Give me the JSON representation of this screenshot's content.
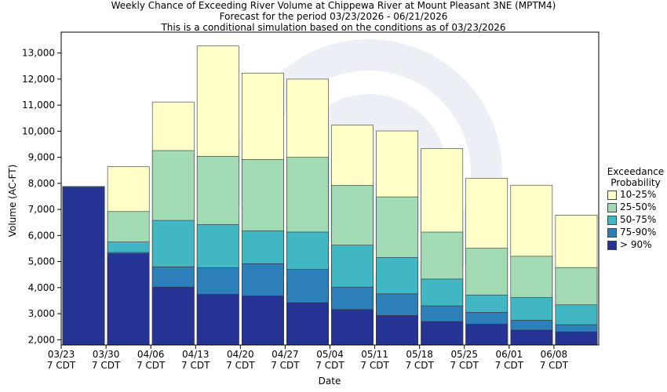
{
  "header": {
    "title": "Weekly Chance of Exceeding River Volume at Chippewa River at Mount Pleasant 3NE (MPTM4)",
    "subtitle1": "Forecast for the period 03/23/2026 - 06/21/2026",
    "subtitle2": "This is a conditional simulation based on the conditions as of 03/23/2026"
  },
  "legend": {
    "title_line1": "Exceedance",
    "title_line2": "Probability",
    "items": [
      {
        "label": "10-25%",
        "color": "#ffffc8"
      },
      {
        "label": "25-50%",
        "color": "#a2dab4"
      },
      {
        "label": "50-75%",
        "color": "#41b7c4"
      },
      {
        "label": "75-90%",
        "color": "#2c7fb8"
      },
      {
        "label": "> 90%",
        "color": "#253494"
      }
    ]
  },
  "chart_data": {
    "type": "bar",
    "title": "Weekly Chance of Exceeding River Volume at Chippewa River at Mount Pleasant 3NE (MPTM4)",
    "xlabel": "Date",
    "ylabel": "Volume (AC-FT)",
    "ylim": [
      1800,
      13800
    ],
    "yticks": [
      2000,
      3000,
      4000,
      5000,
      6000,
      7000,
      8000,
      9000,
      10000,
      11000,
      12000,
      13000
    ],
    "ytick_labels": [
      "2,000",
      "3,000",
      "4,000",
      "5,000",
      "6,000",
      "7,000",
      "8,000",
      "9,000",
      "10,000",
      "11,000",
      "12,000",
      "13,000"
    ],
    "xtick_labels": [
      [
        "03/23",
        "7 CDT"
      ],
      [
        "03/30",
        "7 CDT"
      ],
      [
        "04/06",
        "7 CDT"
      ],
      [
        "04/13",
        "7 CDT"
      ],
      [
        "04/20",
        "7 CDT"
      ],
      [
        "04/27",
        "7 CDT"
      ],
      [
        "05/04",
        "7 CDT"
      ],
      [
        "05/11",
        "7 CDT"
      ],
      [
        "05/18",
        "7 CDT"
      ],
      [
        "05/25",
        "7 CDT"
      ],
      [
        "06/01",
        "7 CDT"
      ],
      [
        "06/08",
        "7 CDT"
      ]
    ],
    "categories": [
      "03/23",
      "03/30",
      "04/06",
      "04/13",
      "04/20",
      "04/27",
      "05/04",
      "05/11",
      "05/18",
      "05/25",
      "06/01",
      "06/08"
    ],
    "series": [
      {
        "name": "> 90%",
        "values": [
          7850,
          5300,
          4020,
          3740,
          3680,
          3420,
          3160,
          2930,
          2700,
          2600,
          2370,
          2300
        ]
      },
      {
        "name": "75-90%",
        "values": [
          7880,
          5350,
          4800,
          4760,
          4920,
          4700,
          4020,
          3760,
          3300,
          3050,
          2750,
          2580
        ]
      },
      {
        "name": "50-75%",
        "values": [
          7880,
          5750,
          6580,
          6420,
          6180,
          6130,
          5630,
          5160,
          4330,
          3720,
          3620,
          3340
        ]
      },
      {
        "name": "25-50%",
        "values": [
          7880,
          6920,
          9260,
          9040,
          8920,
          9000,
          7920,
          7480,
          6130,
          5510,
          5200,
          4770
        ]
      },
      {
        "name": "10-25%",
        "values": [
          7880,
          8640,
          11120,
          13270,
          12230,
          12000,
          10230,
          10010,
          9330,
          8190,
          7930,
          6780
        ]
      }
    ],
    "colors": [
      "#253494",
      "#2c7fb8",
      "#41b7c4",
      "#a2dab4",
      "#ffffc8"
    ],
    "grid": false,
    "legend_position": "right"
  }
}
